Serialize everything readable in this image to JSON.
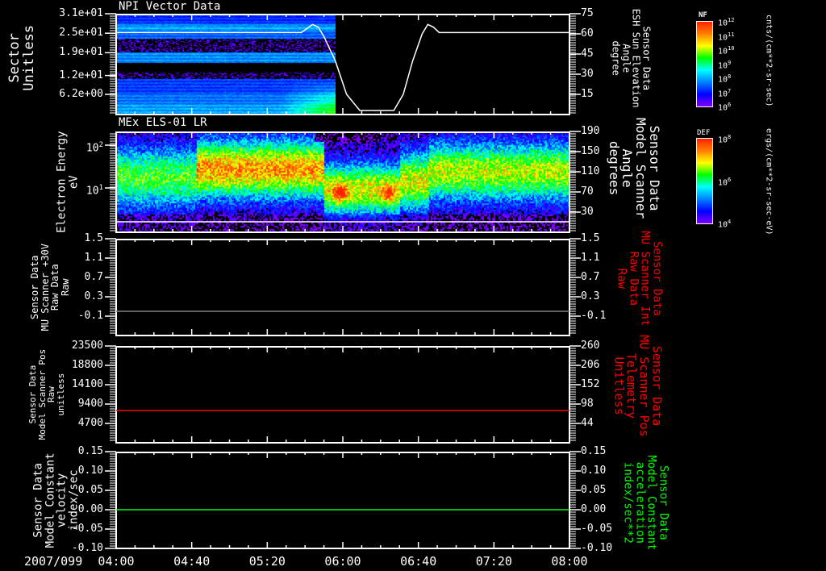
{
  "chart_data": [
    {
      "type": "heatmap",
      "title": "NPI Vector Data",
      "ylabel": [
        "Sector",
        "Unitless"
      ],
      "yticks": [
        "3.1e+01",
        "2.5e+01",
        "1.9e+01",
        "1.2e+01",
        "6.2e+00"
      ],
      "ytick_values": [
        31,
        25,
        19,
        12,
        6.2
      ],
      "ylim": [
        0,
        31
      ],
      "data_end_time": "05:56",
      "colorbar": {
        "title": "NF",
        "labels": [
          "10^12",
          "10^11",
          "10^10",
          "10^9",
          "10^8",
          "10^7",
          "10^6"
        ],
        "units": "cnts/(cm**2-sr-sec)"
      },
      "overlay": {
        "type": "line",
        "ylabel": [
          "Sensor Data",
          "ESH Sun Elevation",
          "Angle",
          "degree"
        ],
        "yticks": [
          "75",
          "60",
          "45",
          "30",
          "15"
        ],
        "ytick_values": [
          75,
          60,
          45,
          30,
          15
        ],
        "ylim": [
          0,
          75
        ],
        "color": "#ffffff",
        "x_minutes": [
          0,
          98,
          101,
          104,
          107,
          110,
          116,
          122,
          129,
          135,
          147,
          152,
          157,
          162,
          165,
          168,
          171,
          240
        ],
        "y": [
          61,
          61,
          64,
          67,
          65,
          58,
          40,
          15,
          3,
          3,
          3,
          15,
          40,
          60,
          67,
          65,
          61,
          61
        ]
      }
    },
    {
      "type": "heatmap",
      "title": "MEx ELS-01 LR",
      "ylabel": [
        "Electron Energy",
        "eV"
      ],
      "yticks": [
        "10^2",
        "10^1"
      ],
      "ytick_values": [
        100,
        10
      ],
      "yscale": "log",
      "colorbar": {
        "title": "DEF",
        "labels": [
          "10^8",
          "10^6",
          "10^4"
        ],
        "units": "ergs/(cm**2-sr-sec-eV)"
      },
      "right_axis": {
        "ylabel": [
          "Sensor Data",
          "Model Scanner",
          "Angle",
          "degrees"
        ],
        "yticks": [
          "190",
          "150",
          "110",
          "70",
          "30"
        ],
        "ytick_values": [
          190,
          150,
          110,
          70,
          30
        ],
        "ylim": [
          -10,
          190
        ]
      }
    },
    {
      "type": "line",
      "ylabel": [
        "Sensor Data",
        "MU Scanner +30V",
        "Raw Data",
        "Raw"
      ],
      "yticks": [
        "1.5",
        "1.1",
        "0.7",
        "0.3",
        "-0.1"
      ],
      "ytick_values": [
        1.5,
        1.1,
        0.7,
        0.3,
        -0.1
      ],
      "ylim": [
        -0.5,
        1.5
      ],
      "series": [
        {
          "name": "MU Scanner +30V",
          "color": "#808080",
          "x_minutes": [
            0,
            240
          ],
          "y": [
            0.0,
            0.0
          ]
        }
      ],
      "right_axis": {
        "ylabel": [
          "Sensor Data",
          "MU Scanner Int",
          "Raw Data",
          "Raw"
        ],
        "color": "#ff0000",
        "yticks": [
          "1.5",
          "1.1",
          "0.7",
          "0.3",
          "-0.1"
        ],
        "ytick_values": [
          1.5,
          1.1,
          0.7,
          0.3,
          -0.1
        ],
        "ylim": [
          -0.5,
          1.5
        ]
      }
    },
    {
      "type": "line",
      "ylabel": [
        "Sensor Data",
        "Model Scanner Pos",
        "Raw",
        "unitless"
      ],
      "yticks": [
        "23500",
        "18800",
        "14100",
        "9400",
        "4700"
      ],
      "ytick_values": [
        23500,
        18800,
        14100,
        9400,
        4700
      ],
      "ylim": [
        0,
        23500
      ],
      "series": [
        {
          "name": "MU Scanner Pos Telemetry",
          "color": "#ff0000",
          "axis": "right",
          "x_minutes": [
            0,
            240
          ],
          "y": [
            80,
            80
          ]
        }
      ],
      "right_axis": {
        "ylabel": [
          "Sensor Data",
          "MU Scanner Pos",
          "Telemetry",
          "Unitless"
        ],
        "color": "#ff0000",
        "yticks": [
          "260",
          "206",
          "152",
          "98",
          "44"
        ],
        "ytick_values": [
          260,
          206,
          152,
          98,
          44
        ],
        "ylim": [
          -10,
          260
        ]
      }
    },
    {
      "type": "line",
      "ylabel": [
        "Sensor Data",
        "Model Constant",
        "velocity",
        "index/sec"
      ],
      "yticks": [
        "0.15",
        "0.10",
        "0.05",
        "0.00",
        "-0.05",
        "-0.10"
      ],
      "ytick_values": [
        0.15,
        0.1,
        0.05,
        0.0,
        -0.05,
        -0.1
      ],
      "ylim": [
        -0.1,
        0.15
      ],
      "series": [
        {
          "name": "Model Constant acceleration",
          "color": "#00ff00",
          "x_minutes": [
            0,
            240
          ],
          "y": [
            0.0,
            0.0
          ]
        }
      ],
      "right_axis": {
        "ylabel": [
          "Sensor Data",
          "Model Constant",
          "acceleration",
          "index/sec**2"
        ],
        "color": "#00ff00",
        "yticks": [
          "0.15",
          "0.10",
          "0.05",
          "0.00",
          "-0.05",
          "-0.10"
        ],
        "ytick_values": [
          0.15,
          0.1,
          0.05,
          0.0,
          -0.05,
          -0.1
        ],
        "ylim": [
          -0.1,
          0.15
        ]
      }
    }
  ],
  "time_axis": {
    "date": "2007/099",
    "labels": [
      "04:00",
      "04:40",
      "05:20",
      "06:00",
      "06:40",
      "07:20",
      "08:00"
    ],
    "minutes": [
      0,
      40,
      80,
      120,
      160,
      200,
      240
    ]
  }
}
